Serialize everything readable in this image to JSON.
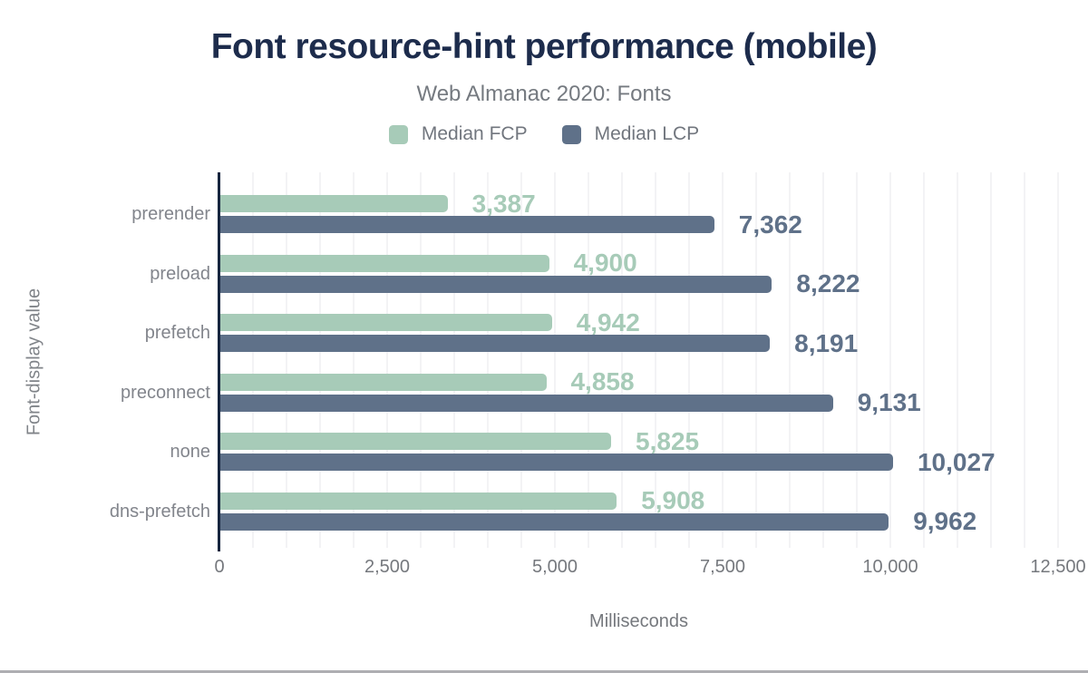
{
  "chart_data": {
    "type": "bar",
    "orientation": "horizontal",
    "title": "Font resource-hint performance (mobile)",
    "subtitle": "Web Almanac 2020: Fonts",
    "xlabel": "Milliseconds",
    "ylabel": "Font-display value",
    "categories": [
      "prerender",
      "preload",
      "prefetch",
      "preconnect",
      "none",
      "dns-prefetch"
    ],
    "series": [
      {
        "name": "Median FCP",
        "color": "#a7cbb8",
        "values": [
          3387,
          4900,
          4942,
          4858,
          5825,
          5908
        ]
      },
      {
        "name": "Median LCP",
        "color": "#5f7189",
        "values": [
          7362,
          8222,
          8191,
          9131,
          10027,
          9962
        ]
      }
    ],
    "xlim": [
      0,
      12500
    ],
    "x_ticks": [
      0,
      2500,
      5000,
      7500,
      10000,
      12500
    ],
    "minor_gridline_step": 500,
    "grid": true,
    "legend_position": "top",
    "value_labels": true,
    "accent_colors": {
      "title_navy": "#1d2c4c",
      "axis_navy": "#16253e",
      "fcp_green": "#a7cbb8",
      "lcp_slate": "#5f7189"
    }
  }
}
